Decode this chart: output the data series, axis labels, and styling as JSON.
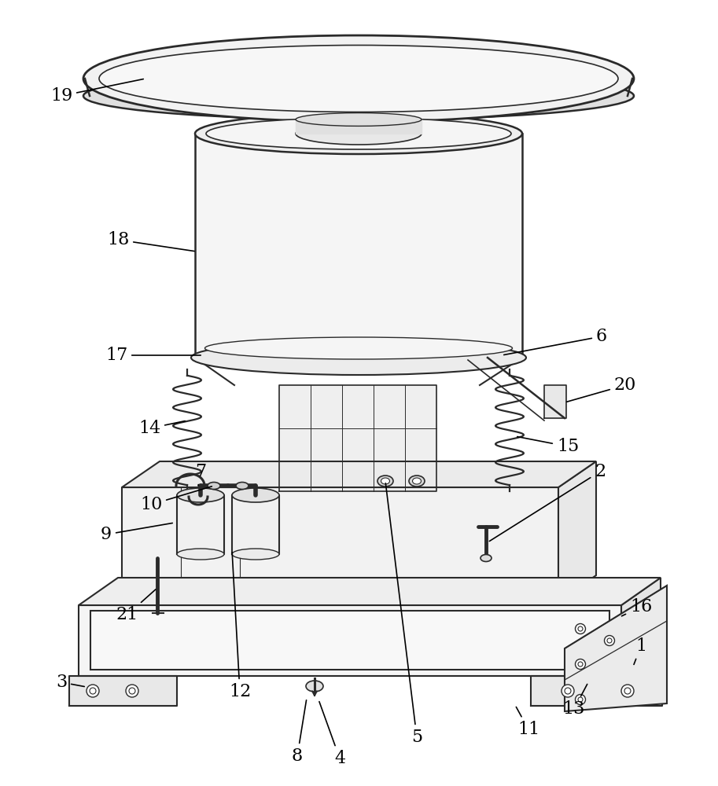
{
  "bg_color": "#ffffff",
  "line_color": "#2a2a2a",
  "label_fontsize": 16
}
